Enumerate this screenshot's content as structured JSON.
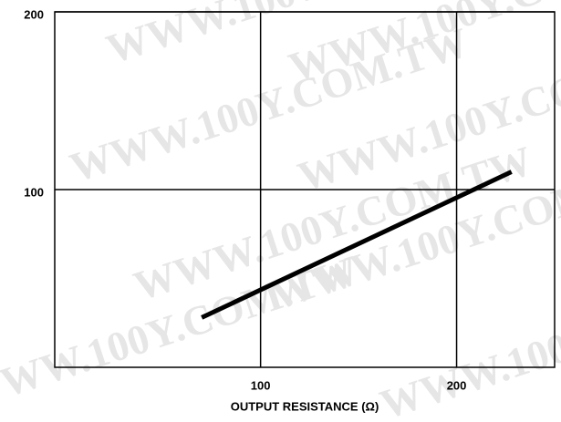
{
  "chart_data": {
    "type": "line",
    "xlabel": "OUTPUT RESISTANCE (Ω)",
    "watermark": "WWW.100Y.COM.TW",
    "x": [
      70,
      228
    ],
    "series": [
      {
        "color": "#000000",
        "values": [
          28,
          110
        ]
      }
    ],
    "xlim": [
      -5,
      250
    ],
    "xticks": [
      100,
      200
    ],
    "ylim": [
      0,
      200
    ],
    "yticks": [
      100,
      200
    ],
    "grid": true
  }
}
